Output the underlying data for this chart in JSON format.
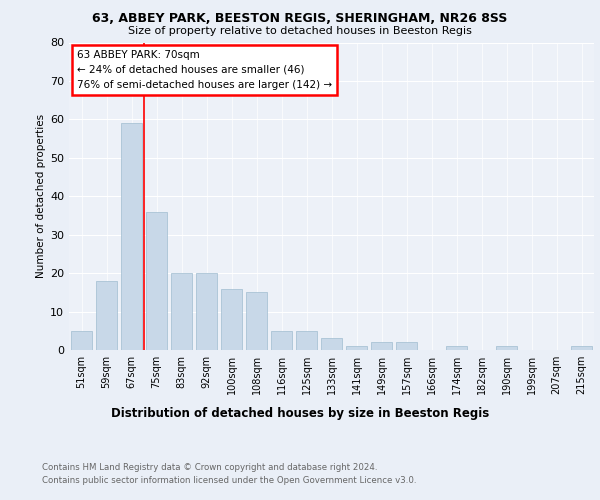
{
  "title": "63, ABBEY PARK, BEESTON REGIS, SHERINGHAM, NR26 8SS",
  "subtitle": "Size of property relative to detached houses in Beeston Regis",
  "xlabel": "Distribution of detached houses by size in Beeston Regis",
  "ylabel": "Number of detached properties",
  "footer1": "Contains HM Land Registry data © Crown copyright and database right 2024.",
  "footer2": "Contains public sector information licensed under the Open Government Licence v3.0.",
  "categories": [
    "51sqm",
    "59sqm",
    "67sqm",
    "75sqm",
    "83sqm",
    "92sqm",
    "100sqm",
    "108sqm",
    "116sqm",
    "125sqm",
    "133sqm",
    "141sqm",
    "149sqm",
    "157sqm",
    "166sqm",
    "174sqm",
    "182sqm",
    "190sqm",
    "199sqm",
    "207sqm",
    "215sqm"
  ],
  "values": [
    5,
    18,
    59,
    36,
    20,
    20,
    16,
    15,
    5,
    5,
    3,
    1,
    2,
    2,
    0,
    1,
    0,
    1,
    0,
    0,
    1
  ],
  "bar_color": "#c8d8e8",
  "bar_edge_color": "#a0bcd0",
  "vline_color": "red",
  "vline_pos": 2.5,
  "annotation_text1": "63 ABBEY PARK: 70sqm",
  "annotation_text2": "← 24% of detached houses are smaller (46)",
  "annotation_text3": "76% of semi-detached houses are larger (142) →",
  "ylim": [
    0,
    80
  ],
  "yticks": [
    0,
    10,
    20,
    30,
    40,
    50,
    60,
    70,
    80
  ],
  "bg_color": "#eaeff7",
  "plot_bg_color": "#edf1f8",
  "grid_color": "#ffffff",
  "title_fontsize": 9,
  "subtitle_fontsize": 8,
  "xlabel_fontsize": 8.5,
  "ylabel_fontsize": 7.5,
  "tick_fontsize": 7,
  "footer_fontsize": 6.2
}
